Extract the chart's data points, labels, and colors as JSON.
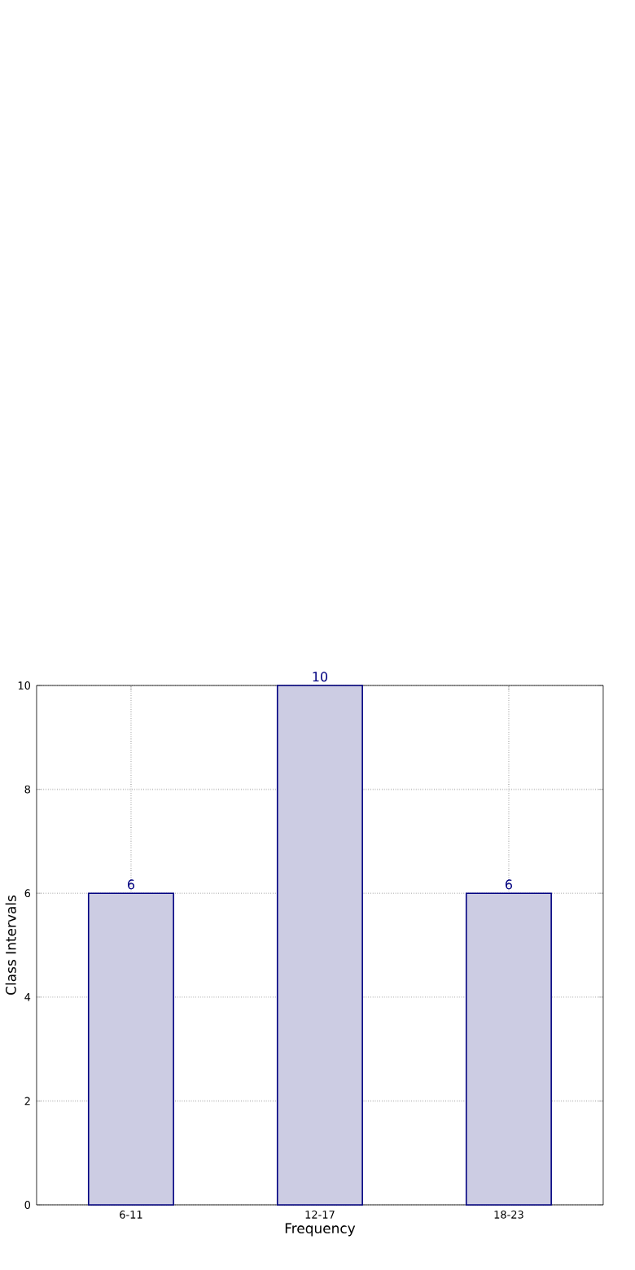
{
  "chart_data": {
    "type": "bar",
    "xlabel": "Frequency",
    "ylabel": "Class Intervals",
    "categories": [
      "6-11",
      "12-17",
      "18-23"
    ],
    "values": [
      6,
      10,
      6
    ],
    "color": "#ccccE3",
    "ylim": [
      0,
      10
    ],
    "yticks": [
      0,
      2,
      4,
      6,
      8,
      10
    ],
    "grid": true,
    "data_labels": true
  }
}
